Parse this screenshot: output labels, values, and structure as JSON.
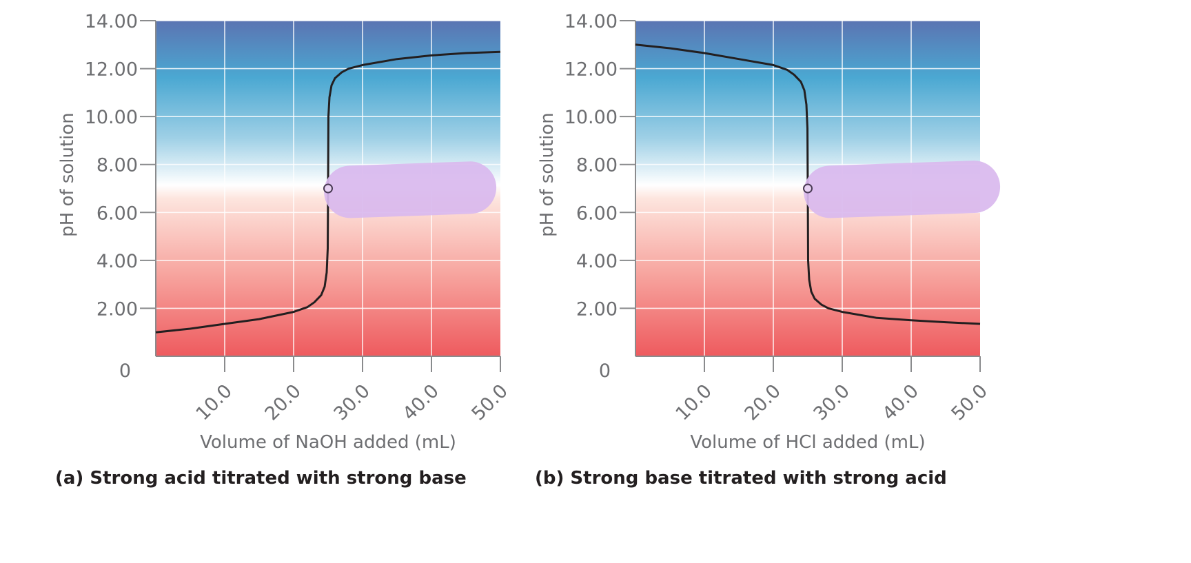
{
  "chart_data": [
    {
      "type": "line",
      "caption": "(a) Strong acid titrated with strong base",
      "xlabel": "Volume of NaOH added (mL)",
      "ylabel": "pH of solution",
      "xlim": [
        0,
        50
      ],
      "ylim": [
        0,
        14
      ],
      "xticks": [
        "10.0",
        "20.0",
        "30.0",
        "40.0",
        "50.0"
      ],
      "yticks": [
        "0",
        "2.00",
        "4.00",
        "6.00",
        "8.00",
        "10.00",
        "12.00",
        "14.00"
      ],
      "grid": true,
      "background": "gradient: red (acidic, low pH) to white (pH 7) to blue (basic, high pH)",
      "equivalence_point": {
        "x": 25.0,
        "y": 7.0
      },
      "series": [
        {
          "x": [
            0,
            5,
            10,
            15,
            20,
            22,
            23,
            24,
            24.5,
            24.8,
            24.95,
            25,
            25.05,
            25.2,
            25.5,
            26,
            27,
            28,
            30,
            35,
            40,
            45,
            50
          ],
          "y": [
            1.0,
            1.15,
            1.35,
            1.55,
            1.85,
            2.05,
            2.25,
            2.55,
            2.9,
            3.5,
            4.5,
            7.0,
            10.0,
            10.8,
            11.3,
            11.6,
            11.85,
            12.0,
            12.15,
            12.4,
            12.55,
            12.65,
            12.7
          ]
        }
      ]
    },
    {
      "type": "line",
      "caption": "(b) Strong base titrated with strong acid",
      "xlabel": "Volume of HCl added (mL)",
      "ylabel": "pH of solution",
      "xlim": [
        0,
        50
      ],
      "ylim": [
        0,
        14
      ],
      "xticks": [
        "10.0",
        "20.0",
        "30.0",
        "40.0",
        "50.0"
      ],
      "yticks": [
        "0",
        "2.00",
        "4.00",
        "6.00",
        "8.00",
        "10.00",
        "12.00",
        "14.00"
      ],
      "grid": true,
      "background": "gradient: red (acidic, low pH) to white (pH 7) to blue (basic, high pH)",
      "equivalence_point": {
        "x": 25.0,
        "y": 7.0
      },
      "series": [
        {
          "x": [
            0,
            5,
            10,
            15,
            20,
            22,
            23,
            24,
            24.5,
            24.8,
            24.95,
            25,
            25.05,
            25.2,
            25.5,
            26,
            27,
            28,
            30,
            35,
            40,
            45,
            50
          ],
          "y": [
            13.0,
            12.85,
            12.65,
            12.4,
            12.15,
            11.95,
            11.75,
            11.45,
            11.1,
            10.5,
            9.5,
            7.0,
            4.0,
            3.2,
            2.7,
            2.4,
            2.15,
            2.0,
            1.85,
            1.6,
            1.5,
            1.42,
            1.35
          ]
        }
      ]
    }
  ],
  "colors": {
    "curve": "#231f20",
    "grid": "#ffffff",
    "highlight": "#d9b8ee",
    "top": "#5b74b2",
    "mid_blue": "#4ba8d2",
    "neutral": "#ffffff",
    "bottom": "#ee5a5e"
  }
}
